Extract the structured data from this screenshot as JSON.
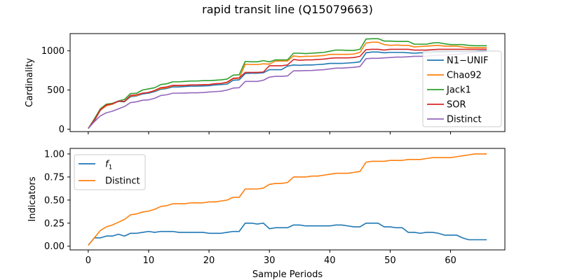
{
  "figure": {
    "title": "rapid transit line (Q15079663)",
    "xlabel": "Sample Periods"
  },
  "chart_data": [
    {
      "type": "line",
      "panel": "top",
      "ylabel": "Cardinality",
      "xlim": [
        -3,
        69
      ],
      "ylim": [
        -30,
        1220
      ],
      "xticks": [
        0,
        10,
        20,
        30,
        40,
        50,
        60
      ],
      "yticks": [
        0,
        500,
        1000
      ],
      "xtick_labels_visible": false,
      "legend_position": "right",
      "x": [
        0,
        1,
        2,
        3,
        4,
        5,
        6,
        7,
        8,
        9,
        10,
        11,
        12,
        13,
        14,
        15,
        16,
        17,
        18,
        19,
        20,
        21,
        22,
        23,
        24,
        25,
        26,
        27,
        28,
        29,
        30,
        31,
        32,
        33,
        34,
        35,
        36,
        37,
        38,
        39,
        40,
        41,
        42,
        43,
        44,
        45,
        46,
        47,
        48,
        49,
        50,
        51,
        52,
        53,
        54,
        55,
        56,
        57,
        58,
        59,
        60,
        61,
        62,
        63,
        64,
        65,
        66
      ],
      "series": [
        {
          "name": "N1−UNIF",
          "color": "#1f77b4",
          "values": [
            10,
            105,
            240,
            305,
            320,
            355,
            350,
            415,
            425,
            450,
            460,
            480,
            510,
            520,
            540,
            540,
            545,
            550,
            550,
            552,
            555,
            565,
            570,
            575,
            625,
            630,
            710,
            715,
            715,
            720,
            760,
            760,
            760,
            805,
            820,
            815,
            820,
            820,
            825,
            830,
            840,
            840,
            840,
            845,
            850,
            860,
            975,
            985,
            985,
            975,
            980,
            980,
            980,
            975,
            970,
            975,
            975,
            980,
            985,
            985,
            990,
            990,
            990,
            995,
            995,
            1000,
            1000
          ]
        },
        {
          "name": "Chao92",
          "color": "#ff7f0e",
          "values": [
            10,
            110,
            245,
            300,
            320,
            360,
            355,
            425,
            430,
            460,
            470,
            490,
            520,
            530,
            555,
            555,
            560,
            565,
            565,
            568,
            570,
            580,
            585,
            595,
            645,
            650,
            830,
            825,
            825,
            835,
            830,
            870,
            870,
            870,
            935,
            925,
            930,
            930,
            935,
            940,
            955,
            955,
            955,
            955,
            960,
            980,
            1100,
            1110,
            1110,
            1080,
            1070,
            1075,
            1070,
            1070,
            1050,
            1055,
            1060,
            1065,
            1070,
            1060,
            1060,
            1060,
            1050,
            1040,
            1040,
            1040,
            1040
          ]
        },
        {
          "name": "Jack1",
          "color": "#2ca02c",
          "values": [
            10,
            130,
            260,
            320,
            330,
            360,
            380,
            455,
            460,
            500,
            515,
            530,
            570,
            580,
            605,
            605,
            610,
            615,
            615,
            620,
            620,
            625,
            630,
            640,
            690,
            695,
            865,
            860,
            860,
            875,
            860,
            885,
            885,
            885,
            970,
            970,
            965,
            970,
            975,
            980,
            995,
            1010,
            1010,
            1005,
            1005,
            1020,
            1150,
            1155,
            1155,
            1125,
            1125,
            1120,
            1120,
            1120,
            1085,
            1085,
            1085,
            1100,
            1105,
            1090,
            1080,
            1080,
            1080,
            1070,
            1065,
            1065,
            1065
          ]
        },
        {
          "name": "SOR",
          "color": "#d62728",
          "values": [
            10,
            115,
            250,
            310,
            325,
            360,
            355,
            430,
            440,
            460,
            470,
            495,
            530,
            540,
            560,
            560,
            560,
            565,
            565,
            568,
            570,
            580,
            585,
            600,
            650,
            655,
            725,
            725,
            725,
            730,
            810,
            810,
            810,
            820,
            890,
            880,
            885,
            885,
            890,
            895,
            905,
            910,
            910,
            910,
            915,
            930,
            1015,
            1020,
            1020,
            1010,
            1020,
            1020,
            1020,
            1020,
            1010,
            1010,
            1010,
            1015,
            1020,
            1020,
            1020,
            1020,
            1020,
            1020,
            1020,
            1020,
            1020
          ]
        },
        {
          "name": "Distinct",
          "color": "#9467bd",
          "values": [
            10,
            95,
            170,
            210,
            230,
            260,
            290,
            340,
            350,
            370,
            375,
            395,
            430,
            440,
            460,
            460,
            462,
            465,
            465,
            468,
            475,
            480,
            485,
            500,
            525,
            530,
            610,
            610,
            610,
            625,
            665,
            675,
            675,
            680,
            745,
            745,
            748,
            750,
            755,
            760,
            770,
            780,
            780,
            785,
            790,
            800,
            900,
            905,
            905,
            910,
            915,
            920,
            920,
            925,
            930,
            930,
            930,
            940,
            945,
            945,
            950,
            955,
            965,
            975,
            980,
            985,
            990
          ]
        }
      ]
    },
    {
      "type": "line",
      "panel": "bottom",
      "ylabel": "Indicators",
      "xlim": [
        -3,
        69
      ],
      "ylim": [
        -0.04,
        1.06
      ],
      "xticks": [
        0,
        10,
        20,
        30,
        40,
        50,
        60
      ],
      "yticks": [
        0.0,
        0.25,
        0.5,
        0.75,
        1.0
      ],
      "ytick_labels": [
        "0.00",
        "0.25",
        "0.50",
        "0.75",
        "1.00"
      ],
      "legend_position": "top-left",
      "x": [
        0,
        1,
        2,
        3,
        4,
        5,
        6,
        7,
        8,
        9,
        10,
        11,
        12,
        13,
        14,
        15,
        16,
        17,
        18,
        19,
        20,
        21,
        22,
        23,
        24,
        25,
        26,
        27,
        28,
        29,
        30,
        31,
        32,
        33,
        34,
        35,
        36,
        37,
        38,
        39,
        40,
        41,
        42,
        43,
        44,
        45,
        46,
        47,
        48,
        49,
        50,
        51,
        52,
        53,
        54,
        55,
        56,
        57,
        58,
        59,
        60,
        61,
        62,
        63,
        64,
        65,
        66
      ],
      "series": [
        {
          "name": "f1",
          "legend_label": "f",
          "legend_subscript": "1",
          "color": "#1f77b4",
          "values": [
            0.01,
            0.09,
            0.09,
            0.11,
            0.11,
            0.13,
            0.11,
            0.14,
            0.14,
            0.15,
            0.16,
            0.15,
            0.16,
            0.16,
            0.16,
            0.15,
            0.15,
            0.15,
            0.15,
            0.15,
            0.14,
            0.14,
            0.14,
            0.15,
            0.16,
            0.16,
            0.25,
            0.25,
            0.24,
            0.25,
            0.19,
            0.2,
            0.2,
            0.2,
            0.23,
            0.23,
            0.22,
            0.22,
            0.22,
            0.22,
            0.22,
            0.23,
            0.23,
            0.22,
            0.21,
            0.21,
            0.25,
            0.25,
            0.25,
            0.21,
            0.21,
            0.2,
            0.2,
            0.15,
            0.15,
            0.14,
            0.15,
            0.15,
            0.14,
            0.12,
            0.12,
            0.12,
            0.09,
            0.07,
            0.07,
            0.07,
            0.07
          ]
        },
        {
          "name": "Distinct",
          "color": "#ff7f0e",
          "values": [
            0.01,
            0.09,
            0.17,
            0.21,
            0.23,
            0.26,
            0.29,
            0.34,
            0.35,
            0.37,
            0.38,
            0.4,
            0.43,
            0.44,
            0.46,
            0.46,
            0.46,
            0.47,
            0.47,
            0.47,
            0.48,
            0.48,
            0.49,
            0.5,
            0.53,
            0.53,
            0.62,
            0.62,
            0.62,
            0.63,
            0.67,
            0.68,
            0.68,
            0.69,
            0.75,
            0.75,
            0.75,
            0.76,
            0.76,
            0.77,
            0.78,
            0.79,
            0.79,
            0.79,
            0.8,
            0.81,
            0.91,
            0.92,
            0.92,
            0.92,
            0.93,
            0.93,
            0.93,
            0.94,
            0.94,
            0.94,
            0.95,
            0.96,
            0.96,
            0.96,
            0.96,
            0.97,
            0.98,
            0.99,
            1.0,
            1.0,
            1.0
          ]
        }
      ]
    }
  ]
}
